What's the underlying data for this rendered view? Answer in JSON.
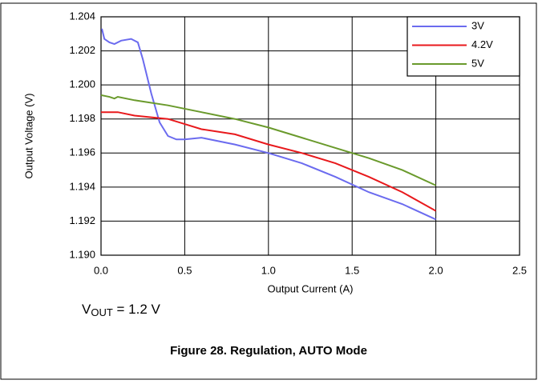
{
  "chart_data": {
    "type": "line",
    "caption": "Figure 28. Regulation, AUTO Mode",
    "annotation": {
      "base": "V",
      "subscript": "OUT",
      "rest": " = 1.2 V"
    },
    "xlabel": "Output Current (A)",
    "ylabel": "Output Voltage (V)",
    "xlim": [
      0,
      2.5
    ],
    "ylim": [
      1.19,
      1.204
    ],
    "xticks": [
      {
        "value": 0,
        "label": "0.0"
      },
      0.5,
      {
        "value": 1,
        "label": "1.0"
      },
      1.5,
      {
        "value": 2,
        "label": "2.0"
      },
      2.5
    ],
    "yticks": [
      {
        "value": 1.19,
        "label": "1.190"
      },
      1.192,
      1.194,
      1.196,
      1.198,
      {
        "value": 1.2,
        "label": "1.200"
      },
      1.202,
      1.204
    ],
    "grid": true,
    "legend": "upper right",
    "series": [
      {
        "name": "3V",
        "color": "#6b6bef",
        "x": [
          0.005,
          0.02,
          0.05,
          0.08,
          0.12,
          0.18,
          0.22,
          0.25,
          0.3,
          0.35,
          0.4,
          0.45,
          0.5,
          0.6,
          0.8,
          1.0,
          1.2,
          1.4,
          1.6,
          1.8,
          2.0
        ],
        "values": [
          1.2033,
          1.2027,
          1.2025,
          1.2024,
          1.2026,
          1.2027,
          1.2025,
          1.2015,
          1.1995,
          1.1978,
          1.197,
          1.1968,
          1.1968,
          1.1969,
          1.1965,
          1.196,
          1.1954,
          1.1946,
          1.1937,
          1.193,
          1.1921
        ]
      },
      {
        "name": "4.2V",
        "color": "#e8191c",
        "x": [
          0,
          0.1,
          0.2,
          0.4,
          0.5,
          0.6,
          0.8,
          1.0,
          1.2,
          1.4,
          1.6,
          1.8,
          2.0
        ],
        "values": [
          1.1984,
          1.1984,
          1.1982,
          1.198,
          1.1977,
          1.1974,
          1.1971,
          1.1965,
          1.196,
          1.1954,
          1.1946,
          1.1937,
          1.1926
        ]
      },
      {
        "name": "5V",
        "color": "#6a9a2c",
        "x": [
          0,
          0.05,
          0.08,
          0.1,
          0.2,
          0.4,
          0.6,
          0.8,
          1.0,
          1.2,
          1.4,
          1.6,
          1.8,
          2.0
        ],
        "values": [
          1.1994,
          1.1993,
          1.1992,
          1.1993,
          1.1991,
          1.1988,
          1.1984,
          1.198,
          1.1975,
          1.1969,
          1.1963,
          1.1957,
          1.195,
          1.1941
        ]
      }
    ]
  }
}
